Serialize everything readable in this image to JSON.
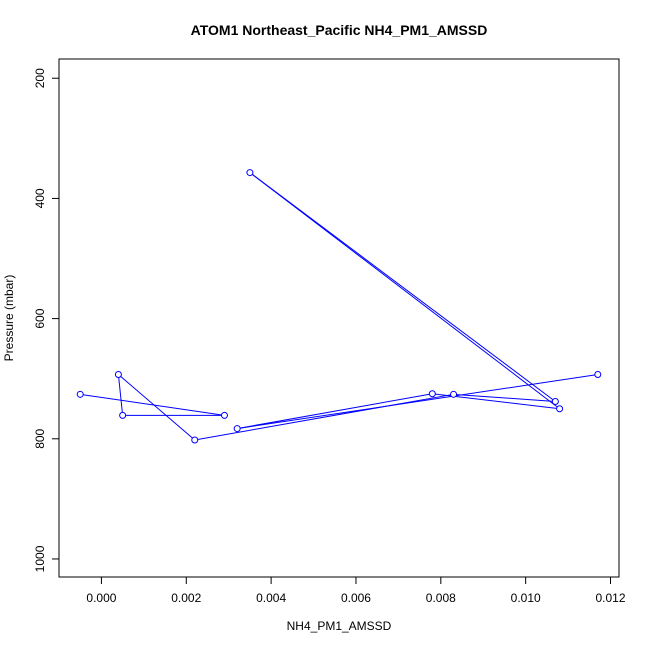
{
  "chart_data": {
    "type": "line",
    "title": "ATOM1 Northeast_Pacific NH4_PM1_AMSSD",
    "xlabel": "NH4_PM1_AMSSD",
    "ylabel": "Pressure (mbar)",
    "xlim": [
      -0.001,
      0.0122
    ],
    "ylim": [
      1030,
      168
    ],
    "y_reversed": true,
    "grid": false,
    "x_ticks": [
      {
        "value": 0.0,
        "label": "0.000"
      },
      {
        "value": 0.002,
        "label": "0.002"
      },
      {
        "value": 0.004,
        "label": "0.004"
      },
      {
        "value": 0.006,
        "label": "0.006"
      },
      {
        "value": 0.008,
        "label": "0.008"
      },
      {
        "value": 0.01,
        "label": "0.010"
      },
      {
        "value": 0.012,
        "label": "0.012"
      }
    ],
    "y_ticks": [
      {
        "value": 200,
        "label": "200"
      },
      {
        "value": 400,
        "label": "400"
      },
      {
        "value": 600,
        "label": "600"
      },
      {
        "value": 800,
        "label": "800"
      },
      {
        "value": 1000,
        "label": "1000"
      }
    ],
    "series": [
      {
        "color": "#0000ff",
        "marker": "open-circle",
        "x": [
          0.0117,
          0.0032,
          0.0078,
          0.0108,
          0.0035,
          0.0107,
          0.0083,
          0.0022,
          0.0004,
          0.0005,
          0.0029,
          -0.0005
        ],
        "y": [
          693,
          783,
          725,
          750,
          357,
          738,
          726,
          802,
          693,
          761,
          761,
          726
        ]
      }
    ]
  }
}
